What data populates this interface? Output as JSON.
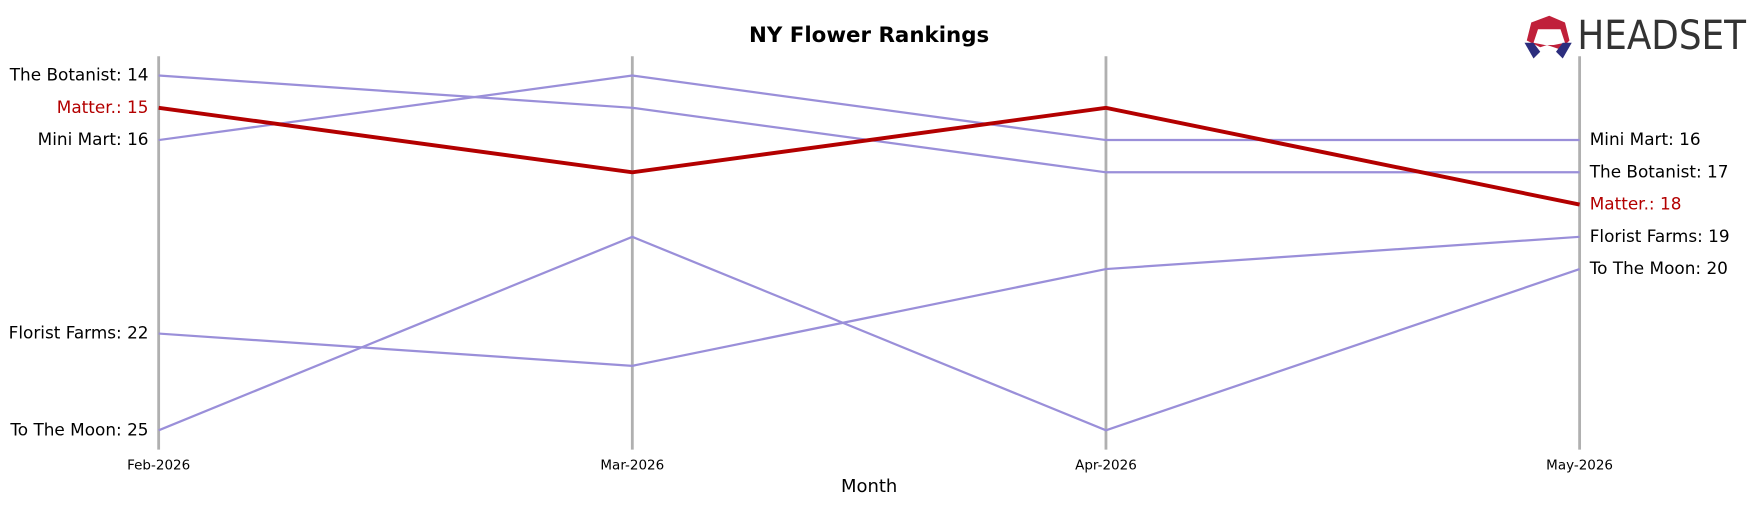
{
  "chart_data": {
    "type": "bump",
    "title": "NY Flower Rankings",
    "x_label": "Month",
    "logo": "HEADSET",
    "categories": [
      "Feb-2026",
      "Mar-2026",
      "Apr-2026",
      "May-2026"
    ],
    "ylim": [
      13.4,
      25.6
    ],
    "y_inverted": true,
    "series": [
      {
        "color": "#9a8fd9",
        "label_color": "#000000",
        "line_width": 2,
        "values": [
          14,
          15,
          17,
          17
        ],
        "value_labels": [
          "The Botanist: 14",
          null,
          null,
          "The Botanist: 17"
        ]
      },
      {
        "color": "#9a8fd9",
        "label_color": "#000000",
        "line_width": 2,
        "values": [
          16,
          14,
          16,
          16
        ],
        "value_labels": [
          "Mini Mart: 16",
          null,
          null,
          "Mini Mart: 16"
        ]
      },
      {
        "color": "#9a8fd9",
        "label_color": "#000000",
        "line_width": 2,
        "values": [
          22,
          23,
          20,
          19
        ],
        "value_labels": [
          "Florist Farms: 22",
          null,
          null,
          "Florist Farms: 19"
        ]
      },
      {
        "color": "#9a8fd9",
        "label_color": "#000000",
        "line_width": 2,
        "values": [
          25,
          19,
          25,
          20
        ],
        "value_labels": [
          "To The Moon: 25",
          null,
          null,
          "To The Moon: 20"
        ]
      },
      {
        "color": "#b30000",
        "label_color": "#b30000",
        "line_width": 3.5,
        "values": [
          15,
          17,
          15,
          18
        ],
        "value_labels": [
          "Matter.: 15",
          null,
          null,
          "Matter.: 18"
        ]
      }
    ]
  }
}
